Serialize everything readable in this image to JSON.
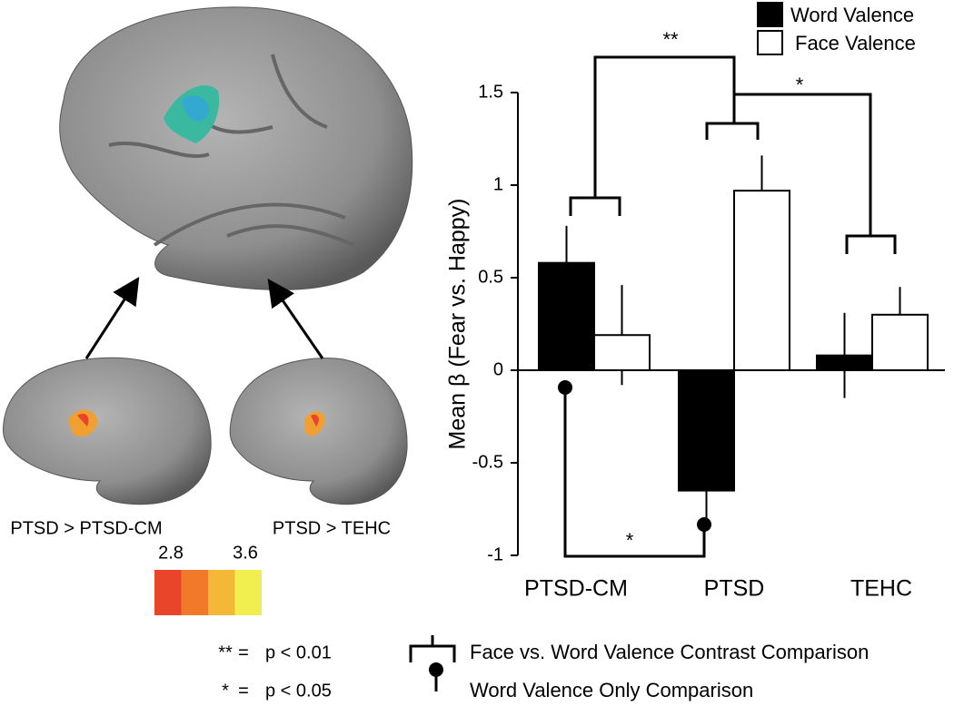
{
  "chart_data": {
    "type": "bar",
    "y_label": "Mean β (Fear vs. Happy)",
    "categories": [
      "PTSD-CM",
      "PTSD",
      "TEHC"
    ],
    "series": [
      {
        "name": "Word Valence",
        "color": "#000000",
        "values": [
          0.58,
          -0.65,
          0.08
        ],
        "errors": [
          0.2,
          0.2,
          0.23
        ]
      },
      {
        "name": "Face Valence",
        "color": "#ffffff",
        "values": [
          0.19,
          0.97,
          0.3
        ],
        "errors": [
          0.27,
          0.19,
          0.15
        ]
      }
    ],
    "ylim": [
      -1,
      1.5
    ],
    "yticks": [
      -1,
      -0.5,
      0,
      0.5,
      1,
      1.5
    ],
    "annotations": [
      "**",
      "*",
      "*"
    ]
  },
  "panels": [
    "PTSD > PTSD-CM",
    "PTSD > TEHC"
  ],
  "colorbar": {
    "ticks": [
      2.8,
      3.6
    ],
    "colors": [
      "#e8452a",
      "#f07a2a",
      "#f5b836",
      "#f1ef4f"
    ]
  },
  "key": {
    "rows": [
      {
        "symbol": "**",
        "eq": "=",
        "text": "p < 0.01"
      },
      {
        "symbol": "*",
        "eq": "=",
        "text": "p < 0.05"
      }
    ],
    "items": [
      "Face vs. Word Valence Contrast Comparison",
      "Word Valence Only Comparison"
    ]
  }
}
